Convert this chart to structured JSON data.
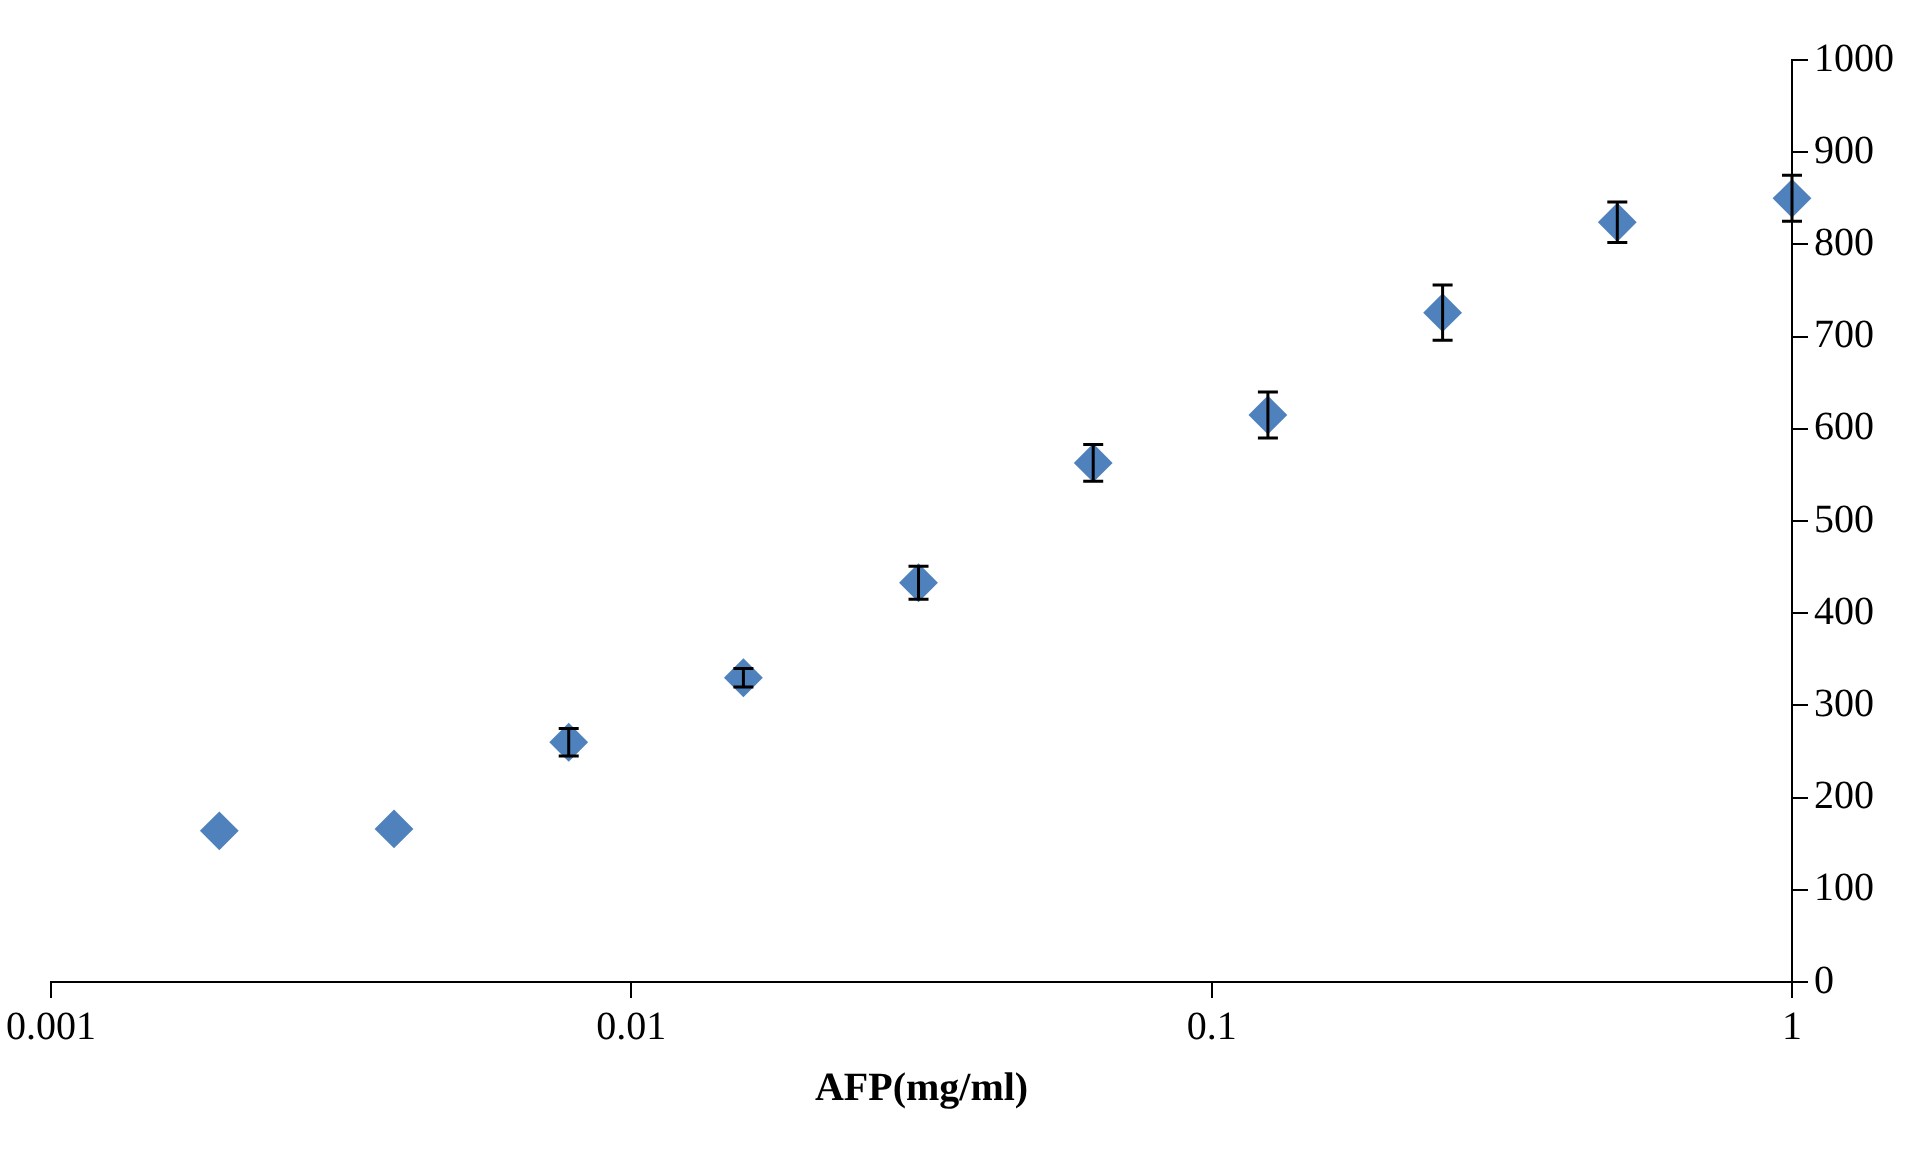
{
  "chart_data": {
    "type": "scatter",
    "xlabel": "AFP(mg/ml)",
    "log": "x",
    "x": [
      0.00195,
      0.0039,
      0.0078,
      0.0156,
      0.03125,
      0.0625,
      0.125,
      0.25,
      0.5,
      1
    ],
    "series": [
      {
        "color": "#4f81bd",
        "values": [
          164,
          166,
          260,
          330,
          433,
          563,
          615,
          726,
          824,
          850
        ],
        "errors": [
          null,
          null,
          15,
          10,
          18,
          20,
          25,
          30,
          22,
          25
        ]
      }
    ],
    "xlim": [
      0.001,
      1
    ],
    "xticks": [
      0.001,
      0.01,
      0.1,
      1
    ],
    "ylim": [
      0,
      1000
    ],
    "yticks": [
      0,
      100,
      200,
      300,
      400,
      500,
      600,
      700,
      800,
      900,
      1000
    ],
    "marker": "diamond",
    "grid": false,
    "legend": false
  }
}
